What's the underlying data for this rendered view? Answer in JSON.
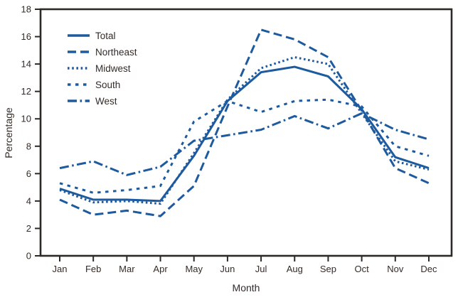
{
  "chart_data": {
    "type": "line",
    "title": "",
    "xlabel": "Month",
    "ylabel": "Percentage",
    "ylim": [
      0,
      18
    ],
    "y_ticks": [
      0,
      2,
      4,
      6,
      8,
      10,
      12,
      14,
      16,
      18
    ],
    "categories": [
      "Jan",
      "Feb",
      "Mar",
      "Apr",
      "May",
      "Jun",
      "Jul",
      "Aug",
      "Sep",
      "Oct",
      "Nov",
      "Dec"
    ],
    "grid": false,
    "legend_position": "upper-left-inside",
    "line_color": "#1d5a9e",
    "axis_color": "#2f2926",
    "series": [
      {
        "name": "Total",
        "style": "solid",
        "values": [
          4.9,
          4.1,
          4.1,
          4.0,
          7.3,
          11.3,
          13.4,
          13.8,
          13.1,
          10.7,
          7.2,
          6.4
        ]
      },
      {
        "name": "Northeast",
        "style": "long-dash",
        "values": [
          4.1,
          3.0,
          3.3,
          2.9,
          5.1,
          10.9,
          16.5,
          15.8,
          14.5,
          10.6,
          6.4,
          5.3
        ]
      },
      {
        "name": "Midwest",
        "style": "dot",
        "values": [
          4.8,
          3.9,
          4.0,
          3.8,
          7.5,
          11.4,
          13.7,
          14.5,
          14.0,
          10.4,
          6.9,
          6.3
        ]
      },
      {
        "name": "South",
        "style": "short-dash",
        "values": [
          5.3,
          4.6,
          4.8,
          5.1,
          9.8,
          11.3,
          10.5,
          11.3,
          11.4,
          10.9,
          8.0,
          7.3
        ]
      },
      {
        "name": "West",
        "style": "dash-dot",
        "values": [
          6.4,
          6.9,
          5.9,
          6.5,
          8.4,
          8.8,
          9.2,
          10.2,
          9.3,
          10.4,
          9.2,
          8.5
        ]
      }
    ]
  }
}
